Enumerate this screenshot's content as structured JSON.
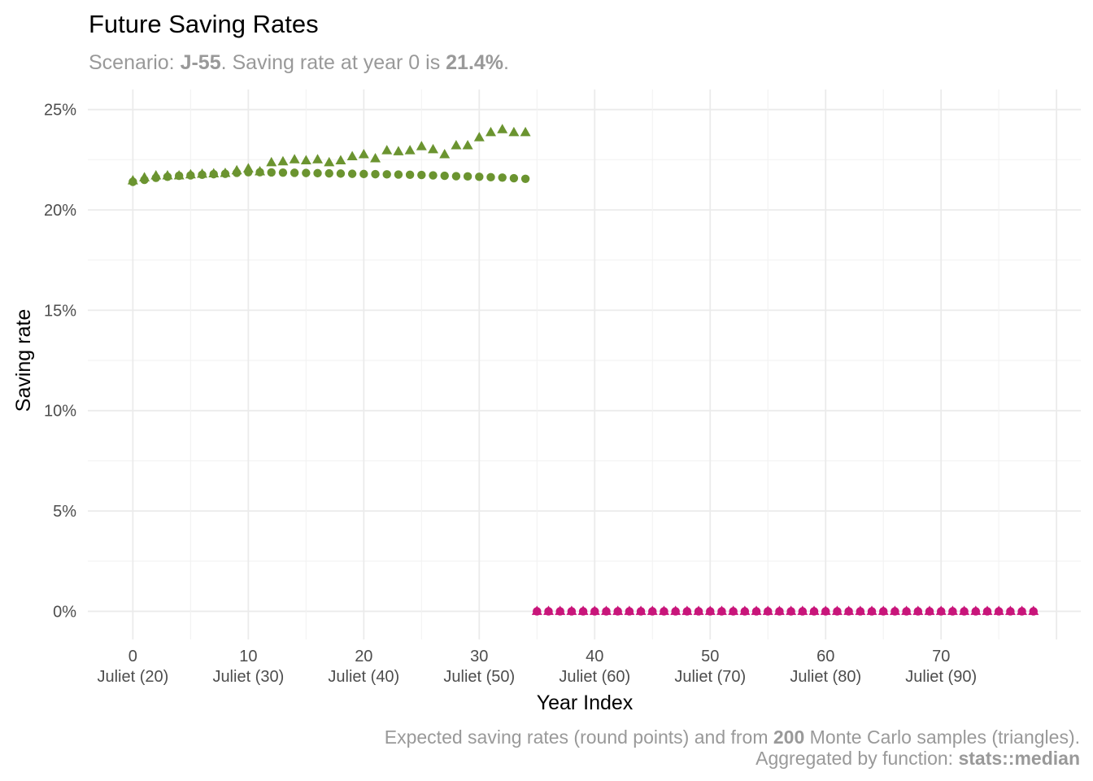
{
  "chart_data": {
    "type": "scatter",
    "title": "Future Saving Rates",
    "subtitle": {
      "prefix": "Scenario: ",
      "scenario": "J-55",
      "middle": ". Saving rate at year 0 is ",
      "rate": "21.4%",
      "suffix": "."
    },
    "xlabel": "Year Index",
    "ylabel": "Saving rate",
    "xlim": [
      -3.9,
      82.1
    ],
    "ylim": [
      -1.4,
      26.0
    ],
    "x_ticks": [
      {
        "value": 0,
        "label": "0",
        "sublabel": "Juliet (20)"
      },
      {
        "value": 10,
        "label": "10",
        "sublabel": "Juliet (30)"
      },
      {
        "value": 20,
        "label": "20",
        "sublabel": "Juliet (40)"
      },
      {
        "value": 30,
        "label": "30",
        "sublabel": "Juliet (50)"
      },
      {
        "value": 40,
        "label": "40",
        "sublabel": "Juliet (60)"
      },
      {
        "value": 50,
        "label": "50",
        "sublabel": "Juliet (70)"
      },
      {
        "value": 60,
        "label": "60",
        "sublabel": "Juliet (80)"
      },
      {
        "value": 70,
        "label": "70",
        "sublabel": "Juliet (90)"
      }
    ],
    "y_ticks": [
      {
        "value": 0,
        "label": "0%"
      },
      {
        "value": 5,
        "label": "5%"
      },
      {
        "value": 10,
        "label": "10%"
      },
      {
        "value": 15,
        "label": "15%"
      },
      {
        "value": 20,
        "label": "20%"
      },
      {
        "value": 25,
        "label": "25%"
      }
    ],
    "grid": true,
    "legend": "none",
    "caption": {
      "line1_prefix": "Expected saving rates (round points) and from ",
      "line1_bold": "200",
      "line1_suffix": " Monte Carlo samples (triangles).",
      "line2_prefix": "Aggregated by function: ",
      "line2_bold": "stats::median"
    },
    "colors": {
      "working": "#6B9430",
      "retired": "#C8157A"
    },
    "series": [
      {
        "name": "expected",
        "shape": "circle",
        "color_key": "working",
        "x": [
          0,
          1,
          2,
          3,
          4,
          5,
          6,
          7,
          8,
          9,
          10,
          11,
          12,
          13,
          14,
          15,
          16,
          17,
          18,
          19,
          20,
          21,
          22,
          23,
          24,
          25,
          26,
          27,
          28,
          29,
          30,
          31,
          32,
          33,
          34
        ],
        "y": [
          21.4,
          21.5,
          21.6,
          21.65,
          21.7,
          21.72,
          21.75,
          21.78,
          21.8,
          21.85,
          21.88,
          21.88,
          21.87,
          21.86,
          21.85,
          21.84,
          21.83,
          21.82,
          21.81,
          21.8,
          21.79,
          21.78,
          21.77,
          21.76,
          21.75,
          21.74,
          21.72,
          21.7,
          21.68,
          21.67,
          21.65,
          21.63,
          21.61,
          21.58,
          21.55
        ]
      },
      {
        "name": "monte_carlo_median",
        "shape": "triangle",
        "color_key": "working",
        "x": [
          0,
          1,
          2,
          3,
          4,
          5,
          6,
          7,
          8,
          9,
          10,
          11,
          12,
          13,
          14,
          15,
          16,
          17,
          18,
          19,
          20,
          21,
          22,
          23,
          24,
          25,
          26,
          27,
          28,
          29,
          30,
          31,
          32,
          33,
          34
        ],
        "y": [
          21.45,
          21.6,
          21.7,
          21.7,
          21.7,
          21.75,
          21.78,
          21.8,
          21.82,
          21.95,
          22.05,
          21.9,
          22.35,
          22.4,
          22.5,
          22.45,
          22.5,
          22.35,
          22.45,
          22.65,
          22.75,
          22.55,
          22.95,
          22.9,
          22.95,
          23.15,
          23.0,
          22.75,
          23.2,
          23.2,
          23.6,
          23.85,
          24.0,
          23.85,
          23.85
        ]
      },
      {
        "name": "expected_retired",
        "shape": "circle",
        "color_key": "retired",
        "x": [
          35,
          36,
          37,
          38,
          39,
          40,
          41,
          42,
          43,
          44,
          45,
          46,
          47,
          48,
          49,
          50,
          51,
          52,
          53,
          54,
          55,
          56,
          57,
          58,
          59,
          60,
          61,
          62,
          63,
          64,
          65,
          66,
          67,
          68,
          69,
          70,
          71,
          72,
          73,
          74,
          75,
          76,
          77,
          78
        ],
        "y": [
          0,
          0,
          0,
          0,
          0,
          0,
          0,
          0,
          0,
          0,
          0,
          0,
          0,
          0,
          0,
          0,
          0,
          0,
          0,
          0,
          0,
          0,
          0,
          0,
          0,
          0,
          0,
          0,
          0,
          0,
          0,
          0,
          0,
          0,
          0,
          0,
          0,
          0,
          0,
          0,
          0,
          0,
          0,
          0
        ]
      },
      {
        "name": "monte_carlo_median_retired",
        "shape": "triangle",
        "color_key": "retired",
        "x": [
          35,
          36,
          37,
          38,
          39,
          40,
          41,
          42,
          43,
          44,
          45,
          46,
          47,
          48,
          49,
          50,
          51,
          52,
          53,
          54,
          55,
          56,
          57,
          58,
          59,
          60,
          61,
          62,
          63,
          64,
          65,
          66,
          67,
          68,
          69,
          70,
          71,
          72,
          73,
          74,
          75,
          76,
          77,
          78
        ],
        "y": [
          0,
          0,
          0,
          0,
          0,
          0,
          0,
          0,
          0,
          0,
          0,
          0,
          0,
          0,
          0,
          0,
          0,
          0,
          0,
          0,
          0,
          0,
          0,
          0,
          0,
          0,
          0,
          0,
          0,
          0,
          0,
          0,
          0,
          0,
          0,
          0,
          0,
          0,
          0,
          0,
          0,
          0,
          0,
          0
        ]
      }
    ]
  }
}
